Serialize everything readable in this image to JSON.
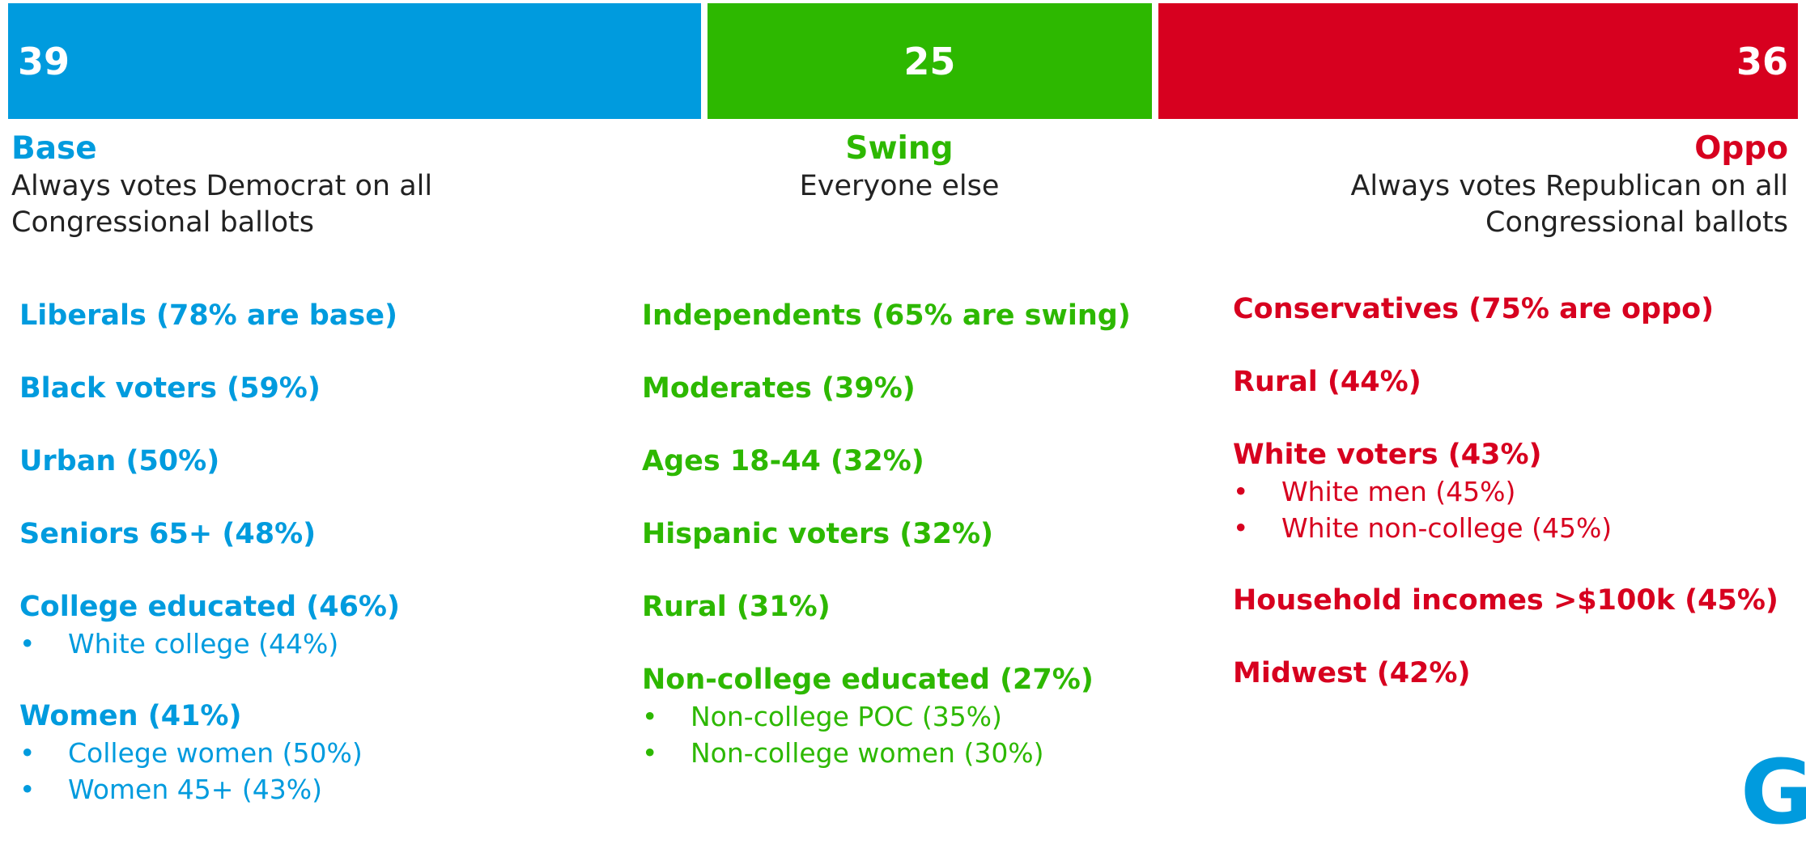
{
  "chart_data": {
    "type": "stacked-bar",
    "series": [
      {
        "name": "Base",
        "color": "#009bde",
        "values": [
          39
        ],
        "description": "Always votes Democrat on all Congressional ballots"
      },
      {
        "name": "Swing",
        "color": "#2db800",
        "values": [
          25
        ],
        "description": "Everyone else"
      },
      {
        "name": "Oppo",
        "color": "#d7001f",
        "values": [
          36
        ],
        "description": "Always votes Republican on all Congressional ballots"
      }
    ]
  },
  "groups": [
    [
      {
        "label": "Liberals (78% are base)",
        "items": []
      },
      {
        "label": "Black voters (59%)",
        "items": []
      },
      {
        "label": "Urban (50%)",
        "items": []
      },
      {
        "label": "Seniors 65+ (48%)",
        "items": []
      },
      {
        "label": "College educated (46%)",
        "items": [
          "White college (44%)"
        ]
      },
      {
        "label": "Women (41%)",
        "items": [
          "College women (50%)",
          "Women 45+ (43%)"
        ]
      }
    ],
    [
      {
        "label": "Independents (65% are swing)",
        "items": []
      },
      {
        "label": "Moderates (39%)",
        "items": []
      },
      {
        "label": "Ages 18-44 (32%)",
        "items": []
      },
      {
        "label": "Hispanic voters (32%)",
        "items": []
      },
      {
        "label": "Rural (31%)",
        "items": []
      },
      {
        "label": "Non-college educated (27%)",
        "items": [
          "Non-college POC (35%)",
          "Non-college women (30%)"
        ]
      }
    ],
    [
      {
        "label": "Conservatives (75% are oppo)",
        "items": []
      },
      {
        "label": "Rural (44%)",
        "items": []
      },
      {
        "label": "White voters (43%)",
        "items": [
          "White men (45%)",
          "White non-college (45%)"
        ]
      },
      {
        "label": "Household incomes >$100k (45%)",
        "items": []
      },
      {
        "label": "Midwest (42%)",
        "items": []
      }
    ]
  ],
  "logo": "GS"
}
